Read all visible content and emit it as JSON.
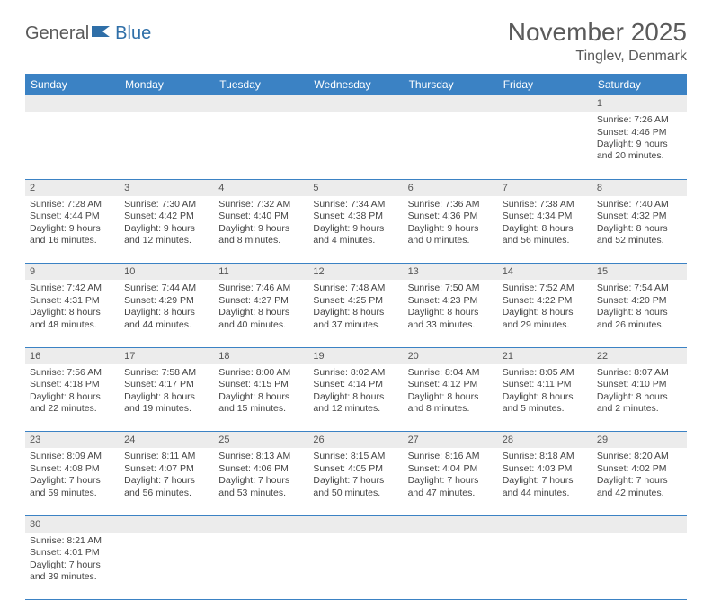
{
  "logo": {
    "part1": "General",
    "part2": "Blue"
  },
  "title": "November 2025",
  "location": "Tinglev, Denmark",
  "colors": {
    "header_bg": "#3b82c4",
    "header_fg": "#ffffff",
    "daynum_bg": "#ececec",
    "border": "#3b82c4",
    "logo_gray": "#5a5a5a",
    "logo_blue": "#2f6fa8"
  },
  "day_headers": [
    "Sunday",
    "Monday",
    "Tuesday",
    "Wednesday",
    "Thursday",
    "Friday",
    "Saturday"
  ],
  "weeks": [
    [
      null,
      null,
      null,
      null,
      null,
      null,
      {
        "n": "1",
        "sunrise": "7:26 AM",
        "sunset": "4:46 PM",
        "daylight": "9 hours and 20 minutes."
      }
    ],
    [
      {
        "n": "2",
        "sunrise": "7:28 AM",
        "sunset": "4:44 PM",
        "daylight": "9 hours and 16 minutes."
      },
      {
        "n": "3",
        "sunrise": "7:30 AM",
        "sunset": "4:42 PM",
        "daylight": "9 hours and 12 minutes."
      },
      {
        "n": "4",
        "sunrise": "7:32 AM",
        "sunset": "4:40 PM",
        "daylight": "9 hours and 8 minutes."
      },
      {
        "n": "5",
        "sunrise": "7:34 AM",
        "sunset": "4:38 PM",
        "daylight": "9 hours and 4 minutes."
      },
      {
        "n": "6",
        "sunrise": "7:36 AM",
        "sunset": "4:36 PM",
        "daylight": "9 hours and 0 minutes."
      },
      {
        "n": "7",
        "sunrise": "7:38 AM",
        "sunset": "4:34 PM",
        "daylight": "8 hours and 56 minutes."
      },
      {
        "n": "8",
        "sunrise": "7:40 AM",
        "sunset": "4:32 PM",
        "daylight": "8 hours and 52 minutes."
      }
    ],
    [
      {
        "n": "9",
        "sunrise": "7:42 AM",
        "sunset": "4:31 PM",
        "daylight": "8 hours and 48 minutes."
      },
      {
        "n": "10",
        "sunrise": "7:44 AM",
        "sunset": "4:29 PM",
        "daylight": "8 hours and 44 minutes."
      },
      {
        "n": "11",
        "sunrise": "7:46 AM",
        "sunset": "4:27 PM",
        "daylight": "8 hours and 40 minutes."
      },
      {
        "n": "12",
        "sunrise": "7:48 AM",
        "sunset": "4:25 PM",
        "daylight": "8 hours and 37 minutes."
      },
      {
        "n": "13",
        "sunrise": "7:50 AM",
        "sunset": "4:23 PM",
        "daylight": "8 hours and 33 minutes."
      },
      {
        "n": "14",
        "sunrise": "7:52 AM",
        "sunset": "4:22 PM",
        "daylight": "8 hours and 29 minutes."
      },
      {
        "n": "15",
        "sunrise": "7:54 AM",
        "sunset": "4:20 PM",
        "daylight": "8 hours and 26 minutes."
      }
    ],
    [
      {
        "n": "16",
        "sunrise": "7:56 AM",
        "sunset": "4:18 PM",
        "daylight": "8 hours and 22 minutes."
      },
      {
        "n": "17",
        "sunrise": "7:58 AM",
        "sunset": "4:17 PM",
        "daylight": "8 hours and 19 minutes."
      },
      {
        "n": "18",
        "sunrise": "8:00 AM",
        "sunset": "4:15 PM",
        "daylight": "8 hours and 15 minutes."
      },
      {
        "n": "19",
        "sunrise": "8:02 AM",
        "sunset": "4:14 PM",
        "daylight": "8 hours and 12 minutes."
      },
      {
        "n": "20",
        "sunrise": "8:04 AM",
        "sunset": "4:12 PM",
        "daylight": "8 hours and 8 minutes."
      },
      {
        "n": "21",
        "sunrise": "8:05 AM",
        "sunset": "4:11 PM",
        "daylight": "8 hours and 5 minutes."
      },
      {
        "n": "22",
        "sunrise": "8:07 AM",
        "sunset": "4:10 PM",
        "daylight": "8 hours and 2 minutes."
      }
    ],
    [
      {
        "n": "23",
        "sunrise": "8:09 AM",
        "sunset": "4:08 PM",
        "daylight": "7 hours and 59 minutes."
      },
      {
        "n": "24",
        "sunrise": "8:11 AM",
        "sunset": "4:07 PM",
        "daylight": "7 hours and 56 minutes."
      },
      {
        "n": "25",
        "sunrise": "8:13 AM",
        "sunset": "4:06 PM",
        "daylight": "7 hours and 53 minutes."
      },
      {
        "n": "26",
        "sunrise": "8:15 AM",
        "sunset": "4:05 PM",
        "daylight": "7 hours and 50 minutes."
      },
      {
        "n": "27",
        "sunrise": "8:16 AM",
        "sunset": "4:04 PM",
        "daylight": "7 hours and 47 minutes."
      },
      {
        "n": "28",
        "sunrise": "8:18 AM",
        "sunset": "4:03 PM",
        "daylight": "7 hours and 44 minutes."
      },
      {
        "n": "29",
        "sunrise": "8:20 AM",
        "sunset": "4:02 PM",
        "daylight": "7 hours and 42 minutes."
      }
    ],
    [
      {
        "n": "30",
        "sunrise": "8:21 AM",
        "sunset": "4:01 PM",
        "daylight": "7 hours and 39 minutes."
      },
      null,
      null,
      null,
      null,
      null,
      null
    ]
  ],
  "labels": {
    "sunrise": "Sunrise: ",
    "sunset": "Sunset: ",
    "daylight": "Daylight: "
  }
}
